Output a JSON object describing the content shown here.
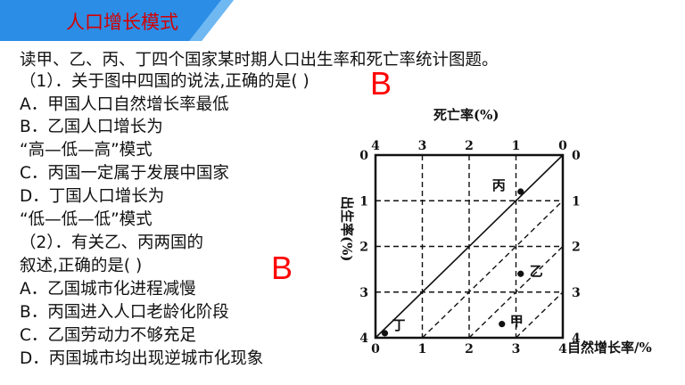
{
  "title": "人口增长模式",
  "intro": "读甲、乙、丙、丁四个国家某时期人口出生率和死亡率统计图题。",
  "q1": {
    "stem": "（1）．关于图中四国的说法,正确的是(      )",
    "answer": "B",
    "options": [
      "A．甲国人口自然增长率最低",
      "B．乙国人口增长为",
      "“高—低—高”模式",
      "C．丙国一定属于发展中国家",
      "D．丁国人口增长为",
      "“低—低—低”模式"
    ]
  },
  "q2": {
    "stem_line1": "（2）．有关乙、丙两国的",
    "stem_line2": "叙述,正确的是(        )",
    "answer": "B",
    "options": [
      "A．乙国城市化进程减慢",
      "B．丙国进入人口老龄化阶段",
      "C．乙国劳动力不够充足",
      "D．丙国城市均出现逆城市化现象"
    ]
  },
  "chart_data": {
    "type": "scatter",
    "top_axis_label": "死亡率(%)",
    "left_axis_label": "出生率(%)",
    "right_axis_label": "自然增长率/%",
    "top_ticks": [
      "4",
      "3",
      "2",
      "1",
      "0"
    ],
    "left_ticks": [
      "0",
      "1",
      "2",
      "3",
      "4"
    ],
    "right_ticks": [
      "0",
      "1",
      "2",
      "3",
      "4"
    ],
    "bottom_ticks": [
      "0",
      "1",
      "2",
      "3",
      "4"
    ],
    "death_rate_range": [
      0,
      4
    ],
    "birth_rate_range": [
      0,
      4
    ],
    "points": [
      {
        "name": "丙",
        "death_rate": 0.9,
        "birth_rate": 0.8
      },
      {
        "name": "乙",
        "death_rate": 0.9,
        "birth_rate": 2.6
      },
      {
        "name": "甲",
        "death_rate": 1.3,
        "birth_rate": 3.7
      },
      {
        "name": "丁",
        "death_rate": 3.8,
        "birth_rate": 3.9
      }
    ]
  },
  "colors": {
    "banner": "#2b8de6",
    "title": "#d40000",
    "answer": "#ff0000"
  }
}
